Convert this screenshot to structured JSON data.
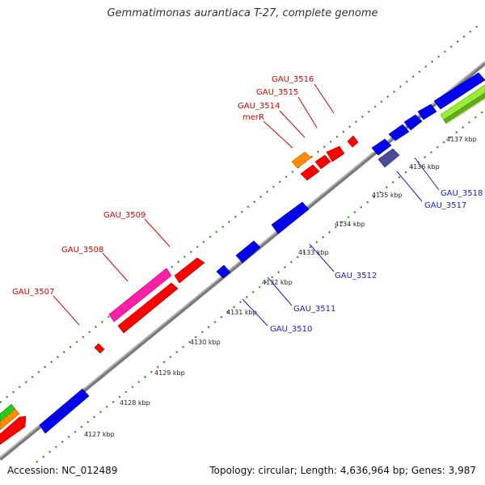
{
  "title": "Gemmatimonas aurantiaca T-27, complete genome",
  "footer": {
    "accession": "Accession: NC_012489",
    "summary": "Topology: circular; Length: 4,636,964 bp; Genes: 3,987"
  },
  "colors": {
    "backbone": "#8c8c8c",
    "tick": "#2e8b1e",
    "forward_label": "#d40000",
    "reverse_label": "#1a1ad0",
    "kbp_label": "#222222",
    "gene_red": "#ff0000",
    "gene_blue": "#0000ee",
    "gene_magenta": "#ff1fa8",
    "gene_orange": "#ff8c00",
    "gene_purple": "#4a4a96",
    "gene_lightgreen": "#99ee33",
    "gene_olive": "#66aa22",
    "gene_green": "#22cc22"
  },
  "kbp_labels": [
    "4127 kbp",
    "4128 kbp",
    "4129 kbp",
    "4130 kbp",
    "4131 kbp",
    "4132 kbp",
    "4133 kbp",
    "4134 kbp",
    "4135 kbp",
    "4136 kbp",
    "4137 kbp"
  ],
  "forward_gene_labels": [
    "GAU_3507",
    "GAU_3508",
    "GAU_3509",
    "merR",
    "GAU_3514",
    "GAU_3515",
    "GAU_3516"
  ],
  "reverse_gene_labels": [
    "GAU_3510",
    "GAU_3511",
    "GAU_3512",
    "GAU_3517",
    "GAU_3518"
  ]
}
